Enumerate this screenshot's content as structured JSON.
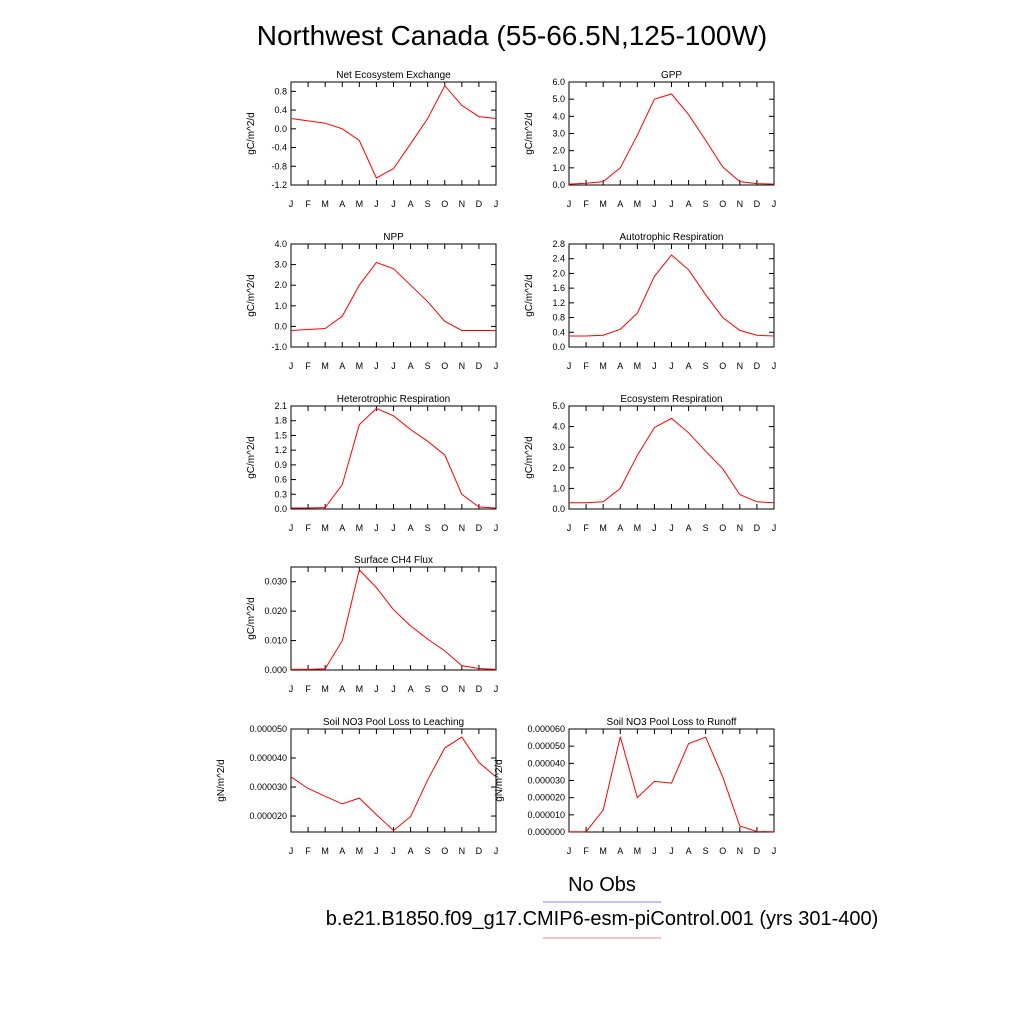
{
  "figure": {
    "title": "Northwest Canada (55-66.5N,125-100W)"
  },
  "legend": {
    "entries": [
      {
        "label": "No Obs",
        "color": "#8080ff"
      },
      {
        "label": "b.e21.B1850.f09_g17.CMIP6-esm-piControl.001 (yrs 301-400)",
        "color": "#ff8080"
      }
    ]
  },
  "chart_data": [
    {
      "type": "line",
      "title": "Net Ecosystem Exchange",
      "ylabel": "gC/m^2/d",
      "x": [
        "J",
        "F",
        "M",
        "A",
        "M",
        "J",
        "J",
        "A",
        "S",
        "O",
        "N",
        "D",
        "J"
      ],
      "ylim": [
        -1.2,
        1.0
      ],
      "yticks": [
        "0.8",
        "0.4",
        "0.0",
        "-0.4",
        "-0.8",
        "-1.2"
      ],
      "yticks_values": [
        0.8,
        0.4,
        0.0,
        -0.4,
        -0.8,
        -1.2
      ],
      "series": [
        {
          "color": "#ff0000",
          "values": [
            0.22,
            0.17,
            0.12,
            0.0,
            -0.25,
            -1.05,
            -0.85,
            -0.32,
            0.22,
            0.92,
            0.5,
            0.26,
            0.22
          ]
        }
      ]
    },
    {
      "type": "line",
      "title": "GPP",
      "ylabel": "gC/m^2/d",
      "x": [
        "J",
        "F",
        "M",
        "A",
        "M",
        "J",
        "J",
        "A",
        "S",
        "O",
        "N",
        "D",
        "J"
      ],
      "ylim": [
        0,
        6.0
      ],
      "yticks": [
        "6.0",
        "5.0",
        "4.0",
        "3.0",
        "2.0",
        "1.0",
        "0.0"
      ],
      "yticks_values": [
        6,
        5,
        4,
        3,
        2,
        1,
        0
      ],
      "series": [
        {
          "color": "#ff0000",
          "values": [
            0.05,
            0.1,
            0.2,
            1.0,
            2.9,
            5.0,
            5.3,
            4.1,
            2.6,
            1.05,
            0.2,
            0.08,
            0.05
          ]
        }
      ]
    },
    {
      "type": "line",
      "title": "NPP",
      "ylabel": "gC/m^2/d",
      "x": [
        "J",
        "F",
        "M",
        "A",
        "M",
        "J",
        "J",
        "A",
        "S",
        "O",
        "N",
        "D",
        "J"
      ],
      "ylim": [
        -1.0,
        4.0
      ],
      "yticks": [
        "4.0",
        "3.0",
        "2.0",
        "1.0",
        "0.0",
        "-1.0"
      ],
      "yticks_values": [
        4,
        3,
        2,
        1,
        0,
        -1
      ],
      "series": [
        {
          "color": "#ff0000",
          "values": [
            -0.2,
            -0.15,
            -0.1,
            0.5,
            2.0,
            3.1,
            2.8,
            2.0,
            1.2,
            0.25,
            -0.2,
            -0.2,
            -0.2
          ]
        }
      ]
    },
    {
      "type": "line",
      "title": "Autotrophic Respiration",
      "ylabel": "gC/m^2/d",
      "x": [
        "J",
        "F",
        "M",
        "A",
        "M",
        "J",
        "J",
        "A",
        "S",
        "O",
        "N",
        "D",
        "J"
      ],
      "ylim": [
        0,
        2.8
      ],
      "yticks": [
        "2.8",
        "2.4",
        "2.0",
        "1.6",
        "1.2",
        "0.8",
        "0.4",
        "0.0"
      ],
      "yticks_values": [
        2.8,
        2.4,
        2.0,
        1.6,
        1.2,
        0.8,
        0.4,
        0.0
      ],
      "series": [
        {
          "color": "#ff0000",
          "values": [
            0.3,
            0.3,
            0.32,
            0.48,
            0.92,
            1.92,
            2.5,
            2.1,
            1.42,
            0.8,
            0.45,
            0.32,
            0.3
          ]
        }
      ]
    },
    {
      "type": "line",
      "title": "Heterotrophic Respiration",
      "ylabel": "gC/m^2/d",
      "x": [
        "J",
        "F",
        "M",
        "A",
        "M",
        "J",
        "J",
        "A",
        "S",
        "O",
        "N",
        "D",
        "J"
      ],
      "ylim": [
        0,
        2.1
      ],
      "yticks": [
        "2.1",
        "1.8",
        "1.5",
        "1.2",
        "0.9",
        "0.6",
        "0.3",
        "0.0"
      ],
      "yticks_values": [
        2.1,
        1.8,
        1.5,
        1.2,
        0.9,
        0.6,
        0.3,
        0.0
      ],
      "series": [
        {
          "color": "#ff0000",
          "values": [
            0.02,
            0.02,
            0.03,
            0.5,
            1.72,
            2.05,
            1.9,
            1.62,
            1.38,
            1.1,
            0.3,
            0.04,
            0.02
          ]
        }
      ]
    },
    {
      "type": "line",
      "title": "Ecosystem Respiration",
      "ylabel": "gC/m^2/d",
      "x": [
        "J",
        "F",
        "M",
        "A",
        "M",
        "J",
        "J",
        "A",
        "S",
        "O",
        "N",
        "D",
        "J"
      ],
      "ylim": [
        0,
        5.0
      ],
      "yticks": [
        "5.0",
        "4.0",
        "3.0",
        "2.0",
        "1.0",
        "0.0"
      ],
      "yticks_values": [
        5,
        4,
        3,
        2,
        1,
        0
      ],
      "series": [
        {
          "color": "#ff0000",
          "values": [
            0.3,
            0.3,
            0.35,
            1.0,
            2.6,
            3.95,
            4.4,
            3.7,
            2.8,
            1.95,
            0.7,
            0.35,
            0.3
          ]
        }
      ]
    },
    {
      "type": "line",
      "title": "Surface CH4 Flux",
      "ylabel": "gC/m^2/d",
      "x": [
        "J",
        "F",
        "M",
        "A",
        "M",
        "J",
        "J",
        "A",
        "S",
        "O",
        "N",
        "D",
        "J"
      ],
      "ylim": [
        0,
        0.035
      ],
      "yticks": [
        "0.030",
        "0.020",
        "0.010",
        "0.000"
      ],
      "yticks_values": [
        0.03,
        0.02,
        0.01,
        0.0
      ],
      "series": [
        {
          "color": "#ff0000",
          "values": [
            0.0002,
            0.0002,
            0.0004,
            0.01,
            0.034,
            0.028,
            0.0205,
            0.015,
            0.0105,
            0.0065,
            0.0015,
            0.0005,
            0.0002
          ]
        }
      ]
    },
    {
      "type": "line",
      "title": "Soil NO3 Pool Loss to Leaching",
      "ylabel": "gN/m^2/d",
      "x": [
        "J",
        "F",
        "M",
        "A",
        "M",
        "J",
        "J",
        "A",
        "S",
        "O",
        "N",
        "D",
        "J"
      ],
      "ylim": [
        1.45e-05,
        5e-05
      ],
      "yticks": [
        "0.000050",
        "0.000040",
        "0.000030",
        "0.000020"
      ],
      "yticks_values": [
        5e-05,
        4e-05,
        3e-05,
        2e-05
      ],
      "series": [
        {
          "color": "#ff0000",
          "values": [
            3.35e-05,
            2.95e-05,
            2.68e-05,
            2.42e-05,
            2.62e-05,
            2.05e-05,
            1.5e-05,
            1.98e-05,
            3.25e-05,
            4.35e-05,
            4.72e-05,
            3.85e-05,
            3.35e-05
          ]
        }
      ]
    },
    {
      "type": "line",
      "title": "Soil NO3 Pool Loss to Runoff",
      "ylabel": "gN/m^2/d",
      "x": [
        "J",
        "F",
        "M",
        "A",
        "M",
        "J",
        "J",
        "A",
        "S",
        "O",
        "N",
        "D",
        "J"
      ],
      "ylim": [
        0,
        6e-05
      ],
      "yticks": [
        "0.000060",
        "0.000050",
        "0.000040",
        "0.000030",
        "0.000020",
        "0.000010",
        "0.000000"
      ],
      "yticks_values": [
        6e-05,
        5e-05,
        4e-05,
        3e-05,
        2e-05,
        1e-05,
        0.0
      ],
      "series": [
        {
          "color": "#ff0000",
          "values": [
            2e-07,
            2e-07,
            1.28e-05,
            5.55e-05,
            2e-05,
            2.95e-05,
            2.85e-05,
            5.15e-05,
            5.52e-05,
            3.2e-05,
            3.5e-06,
            3e-07,
            2e-07
          ]
        }
      ]
    }
  ]
}
